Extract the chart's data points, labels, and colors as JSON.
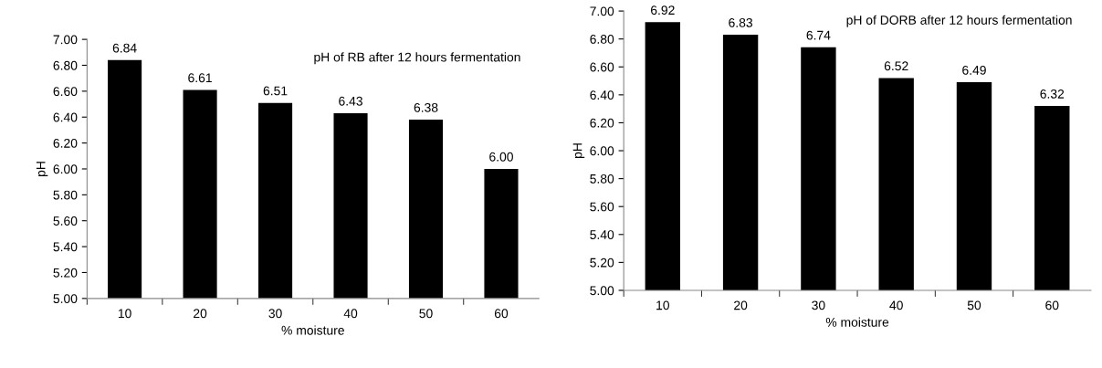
{
  "chart_data": [
    {
      "type": "bar",
      "title": "pH of RB after 12 hours fermentation",
      "xlabel": "% moisture",
      "ylabel": "pH",
      "categories": [
        "10",
        "20",
        "30",
        "40",
        "50",
        "60"
      ],
      "values": [
        6.84,
        6.61,
        6.51,
        6.43,
        6.38,
        6.0
      ],
      "color": "#000000",
      "value_labels": [
        "6.84",
        "6.61",
        "6.51",
        "6.43",
        "6.38",
        "6.00"
      ],
      "ylim": [
        5,
        7
      ],
      "yticks": [
        {
          "value": 5,
          "label": "5.00"
        },
        {
          "value": 5.2,
          "label": "5.20"
        },
        {
          "value": 5.4,
          "label": "5.40"
        },
        {
          "value": 5.6,
          "label": "5.60"
        },
        {
          "value": 5.8,
          "label": "5.80"
        },
        {
          "value": 6,
          "label": "6.00"
        },
        {
          "value": 6.2,
          "label": "6.20"
        },
        {
          "value": 6.4,
          "label": "6.40"
        },
        {
          "value": 6.6,
          "label": "6.60"
        },
        {
          "value": 6.8,
          "label": "6.80"
        },
        {
          "value": 7,
          "label": "7.00"
        }
      ],
      "grid": false,
      "legend": false
    },
    {
      "type": "bar",
      "title": "pH of DORB after 12 hours fermentation",
      "xlabel": "% moisture",
      "ylabel": "pH",
      "categories": [
        "10",
        "20",
        "30",
        "40",
        "50",
        "60"
      ],
      "values": [
        6.92,
        6.83,
        6.74,
        6.52,
        6.49,
        6.32
      ],
      "color": "#000000",
      "value_labels": [
        "6.92",
        "6.83",
        "6.74",
        "6.52",
        "6.49",
        "6.32"
      ],
      "ylim": [
        5,
        7
      ],
      "yticks": [
        {
          "value": 5,
          "label": "5.00"
        },
        {
          "value": 5.2,
          "label": "5.20"
        },
        {
          "value": 5.4,
          "label": "5.40"
        },
        {
          "value": 5.6,
          "label": "5.60"
        },
        {
          "value": 5.8,
          "label": "5.80"
        },
        {
          "value": 6,
          "label": "6.00"
        },
        {
          "value": 6.2,
          "label": "6.20"
        },
        {
          "value": 6.4,
          "label": "6.40"
        },
        {
          "value": 6.6,
          "label": "6.60"
        },
        {
          "value": 6.8,
          "label": "6.80"
        },
        {
          "value": 7,
          "label": "7.00"
        }
      ],
      "grid": false,
      "legend": false
    }
  ]
}
